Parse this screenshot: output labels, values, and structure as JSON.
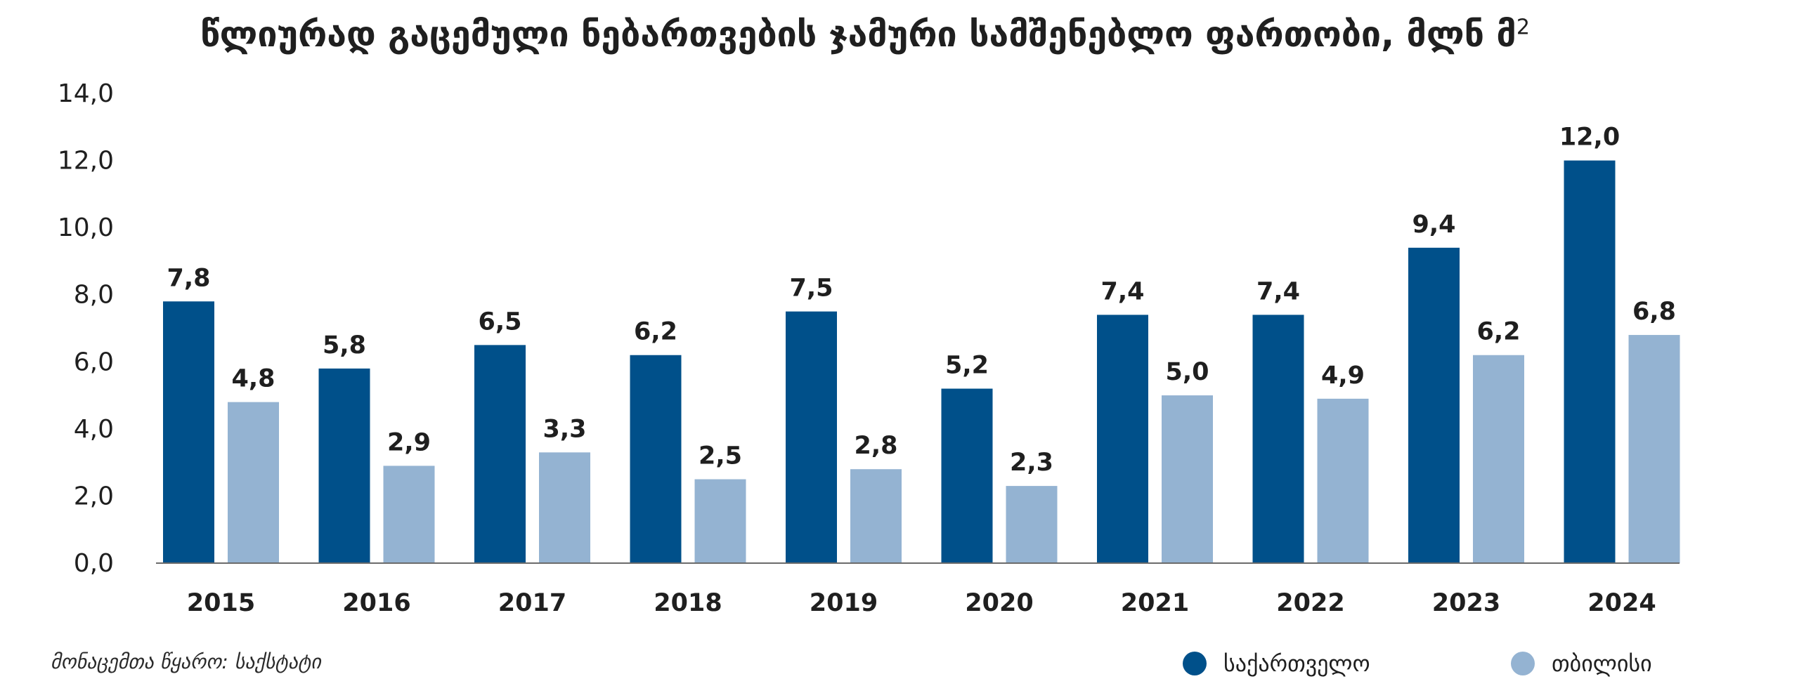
{
  "chart_data": {
    "type": "bar",
    "title": "წლიურად გაცემული ნებართვების ჯამური სამშენებლო ფართობი, მლნ მ",
    "title_superscript": "2",
    "categories": [
      "2015",
      "2016",
      "2017",
      "2018",
      "2019",
      "2020",
      "2021",
      "2022",
      "2023",
      "2024"
    ],
    "series": [
      {
        "name": "საქართველო",
        "color": "#00508a",
        "values": [
          7.8,
          5.8,
          6.5,
          6.2,
          7.5,
          5.2,
          7.4,
          7.4,
          9.4,
          12.0
        ],
        "labels": [
          "7,8",
          "5,8",
          "6,5",
          "6,2",
          "7,5",
          "5,2",
          "7,4",
          "7,4",
          "9,4",
          "12,0"
        ]
      },
      {
        "name": "თბილისი",
        "color": "#94b3d2",
        "values": [
          4.8,
          2.9,
          3.3,
          2.5,
          2.8,
          2.3,
          5.0,
          4.9,
          6.2,
          6.8
        ],
        "labels": [
          "4,8",
          "2,9",
          "3,3",
          "2,5",
          "2,8",
          "2,3",
          "5,0",
          "4,9",
          "6,2",
          "6,8"
        ]
      }
    ],
    "ylim": [
      0,
      14
    ],
    "yticks": [
      "0,0",
      "2,0",
      "4,0",
      "6,0",
      "8,0",
      "10,0",
      "12,0",
      "14,0"
    ],
    "grid": false,
    "legend_position": "bottom-right",
    "source": "მონაცემთა წყარო: საქსტატი"
  }
}
